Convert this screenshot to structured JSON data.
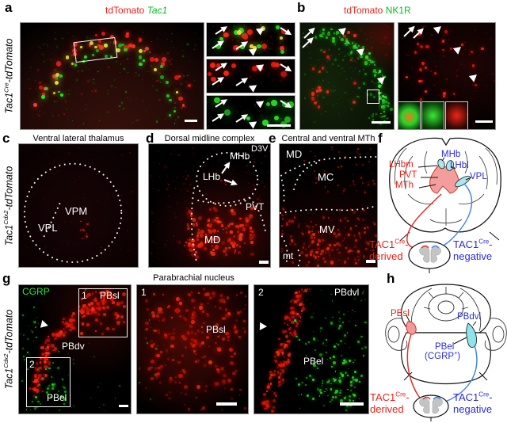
{
  "colors": {
    "red_text": "#ee2016",
    "green_text": "#00c41c",
    "blue_text": "#2b2be0",
    "white_label": "#ffffff",
    "pink_region": "#f29e9c",
    "cyan_region": "#a9e6ee",
    "gray_matter": "#c4c4c4"
  },
  "panel_letters": {
    "a": "a",
    "b": "b",
    "c": "c",
    "d": "d",
    "e": "e",
    "f": "f",
    "g": "g",
    "h": "h"
  },
  "side_labels": {
    "row1": {
      "base": "Tac1",
      "sup": "Cre",
      "rest": "-tdTomato"
    },
    "row2": {
      "base": "Tac1",
      "sup": "Cdx2",
      "rest": "-tdTomato"
    },
    "row3": {
      "base": "Tac1",
      "sup": "Cdx2",
      "rest": "-tdTomato"
    }
  },
  "row1": {
    "a_title_red": "tdTomato",
    "a_title_green": "Tac1",
    "b_title_red": "tdTomato",
    "b_title_green": "NK1R"
  },
  "row2": {
    "c_title": "Ventral lateral thalamus",
    "c_vpm": "VPM",
    "c_vpl": "VPL",
    "d_title": "Dorsal midline complex",
    "d_d3v": "D3V",
    "d_mhb": "MHb",
    "d_lhb": "LHb",
    "d_pvt": "PVT",
    "d_md": "MD",
    "e_title": "Central and ventral MTh",
    "e_md": "MD",
    "e_mc": "MC",
    "e_mv": "MV",
    "e_mt": "mt",
    "f": {
      "lhbm": "LHbm",
      "pvt": "PVT",
      "mth": "MTh",
      "mhb": "MHb",
      "lhbl": "LHbl",
      "vpl": "VPL",
      "legend_red_base": "TAC1",
      "legend_red_sup": "Cre",
      "legend_red_dash": "-",
      "legend_red_line2": "derived",
      "legend_blue_base": "TAC1",
      "legend_blue_sup": "Cre",
      "legend_blue_dash": "-",
      "legend_blue_line2": "negative"
    }
  },
  "row3": {
    "g_title": "Parabrachial nucleus",
    "g_cgrp": "CGRP",
    "g_box1": "1",
    "g_box1_label": "PBsl",
    "g_box2": "2",
    "g_box2_label": "PBel",
    "g_pbdv": "PBdv",
    "g_mid_num": "1",
    "g_mid_label": "PBsl",
    "g_right_num": "2",
    "g_right_top": "PBdvl",
    "g_right_label": "PBel",
    "h": {
      "pbsl": "PBsl",
      "pbdvl": "PBdvl",
      "pbel": "PBel",
      "cgrp_pre": "(CGRP",
      "cgrp_sup": "+",
      "cgrp_post": ")",
      "legend_red_base": "TAC1",
      "legend_red_sup": "Cre",
      "legend_red_dash": "-",
      "legend_red_line2": "derived",
      "legend_blue_base": "TAC1",
      "legend_blue_sup": "Cre",
      "legend_blue_dash": "-",
      "legend_blue_line2": "negative"
    }
  }
}
